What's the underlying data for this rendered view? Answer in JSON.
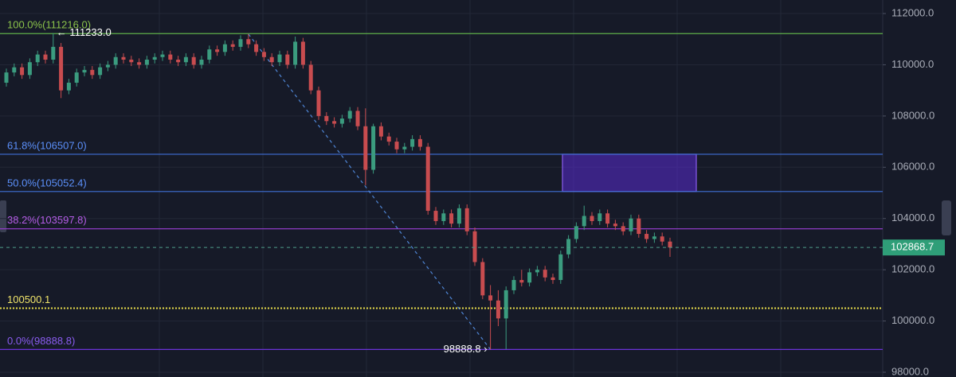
{
  "chart_data": {
    "type": "candlestick",
    "ylim": [
      97814,
      112528
    ],
    "yticks": [
      {
        "value": 112000,
        "label": "112000.0"
      },
      {
        "value": 110000,
        "label": "110000.0"
      },
      {
        "value": 108000,
        "label": "108000.0"
      },
      {
        "value": 106000,
        "label": "106000.0"
      },
      {
        "value": 104000,
        "label": "104000.0"
      },
      {
        "value": 102000,
        "label": "102000.0"
      },
      {
        "value": 100000,
        "label": "100000.0"
      },
      {
        "value": 98000,
        "label": "98000.0"
      }
    ],
    "grid": true,
    "up_color": "#3b9c7f",
    "down_color": "#c84c4f",
    "candles": {
      "open": [
        109300,
        109700,
        109900,
        109600,
        110100,
        110400,
        110200,
        110700,
        109000,
        109300,
        109700,
        109800,
        109600,
        109900,
        110000,
        110300,
        110200,
        110100,
        110000,
        110200,
        110300,
        110400,
        110200,
        110100,
        110300,
        110000,
        110200,
        110600,
        110500,
        110800,
        110700,
        111000,
        110800,
        110500,
        110300,
        110100,
        110400,
        110000,
        110900,
        110000,
        109000,
        108000,
        107800,
        107700,
        107900,
        108200,
        107600,
        105900,
        107600,
        107200,
        107000,
        106700,
        106800,
        107100,
        106800,
        104300,
        103900,
        104200,
        103800,
        104400,
        103500,
        102300,
        101000,
        100800,
        100100,
        101200,
        101600,
        101500,
        101900,
        102000,
        101700,
        101600,
        102600,
        103200,
        103700,
        104100,
        103900,
        104200,
        103800,
        103700,
        103500,
        104000,
        103400,
        103200,
        103300,
        103100
      ],
      "high": [
        109850,
        110050,
        110050,
        110250,
        110550,
        110550,
        111233,
        110850,
        109450,
        109850,
        109950,
        109950,
        110050,
        110150,
        110450,
        110450,
        110350,
        110250,
        110350,
        110450,
        110550,
        110550,
        110350,
        110450,
        110450,
        110350,
        110750,
        110750,
        110950,
        110950,
        111150,
        111200,
        110950,
        110650,
        110450,
        110550,
        110550,
        111100,
        111050,
        110150,
        109150,
        108150,
        107950,
        108050,
        108350,
        108350,
        108300,
        107700,
        107750,
        107350,
        107150,
        106950,
        107250,
        107250,
        106950,
        104450,
        104350,
        104350,
        104550,
        104550,
        103650,
        102450,
        101400,
        101200,
        101350,
        101750,
        102000,
        102050,
        102150,
        102150,
        101850,
        102750,
        103350,
        103850,
        104500,
        104250,
        104350,
        104350,
        103950,
        103850,
        104150,
        104150,
        103550,
        103450,
        103450,
        103250
      ],
      "low": [
        109150,
        109550,
        109450,
        109450,
        109950,
        110050,
        110050,
        108700,
        108850,
        109150,
        109550,
        109450,
        109450,
        109750,
        109850,
        110050,
        109950,
        109850,
        109850,
        110050,
        110150,
        110050,
        109950,
        109950,
        109850,
        109850,
        110050,
        110350,
        110350,
        110550,
        110550,
        110650,
        110350,
        110150,
        109950,
        109950,
        109850,
        109850,
        109850,
        108850,
        107850,
        107650,
        107550,
        107550,
        107750,
        107450,
        105300,
        105750,
        107050,
        106850,
        106550,
        106550,
        106650,
        106650,
        104150,
        103750,
        103750,
        103650,
        103650,
        103350,
        102150,
        100850,
        98888.8,
        99800,
        98900,
        101050,
        101350,
        101350,
        101750,
        101550,
        101450,
        101450,
        102450,
        103050,
        103550,
        103750,
        103750,
        103650,
        103550,
        103350,
        103350,
        103250,
        103050,
        103050,
        102950,
        102500
      ],
      "close": [
        109700,
        109900,
        109600,
        110100,
        110400,
        110200,
        110700,
        109000,
        109300,
        109700,
        109800,
        109600,
        109900,
        110000,
        110300,
        110200,
        110100,
        110000,
        110200,
        110300,
        110400,
        110200,
        110100,
        110300,
        110000,
        110200,
        110600,
        110500,
        110800,
        110700,
        111000,
        110800,
        110500,
        110300,
        110100,
        110400,
        110000,
        110900,
        110000,
        109000,
        108000,
        107800,
        107700,
        107900,
        108200,
        107600,
        105900,
        107600,
        107200,
        107000,
        106700,
        106800,
        107100,
        106800,
        104300,
        103900,
        104200,
        103800,
        104400,
        103500,
        102300,
        101000,
        100800,
        100100,
        101200,
        101600,
        101500,
        101900,
        102000,
        101700,
        101600,
        102600,
        103200,
        103700,
        104100,
        103900,
        104200,
        103800,
        103700,
        103500,
        104000,
        103400,
        103200,
        103300,
        103100,
        102868.7
      ]
    },
    "levels": [
      {
        "label": "100.0%(111216.0)",
        "value": 111216,
        "color": "#5fb04a",
        "text_color": "#8bc34a",
        "style": "solid"
      },
      {
        "label": "61.8%(106507.0)",
        "value": 106507,
        "color": "#3f6fd6",
        "text_color": "#5b8ff9",
        "style": "solid"
      },
      {
        "label": "50.0%(105052.4)",
        "value": 105052.4,
        "color": "#3f6fd6",
        "text_color": "#5b8ff9",
        "style": "solid"
      },
      {
        "label": "38.2%(103597.8)",
        "value": 103597.8,
        "color": "#9b3fd6",
        "text_color": "#b45ce6",
        "style": "solid"
      },
      {
        "label": "100500.1",
        "value": 100500.1,
        "color": "#e8dc4a",
        "text_color": "#f0e46a",
        "style": "dotted"
      },
      {
        "label": "0.0%(98888.8)",
        "value": 98888.8,
        "color": "#6a32d8",
        "text_color": "#8a5cf0",
        "style": "solid"
      }
    ],
    "zone": {
      "high": 106507,
      "low": 105052.4,
      "color": "#5a2bd0"
    },
    "last_price": 102868.7,
    "last_price_color": "#2f9e78",
    "high_marker": "← 111233.0",
    "low_marker": "98888.8 ›"
  }
}
